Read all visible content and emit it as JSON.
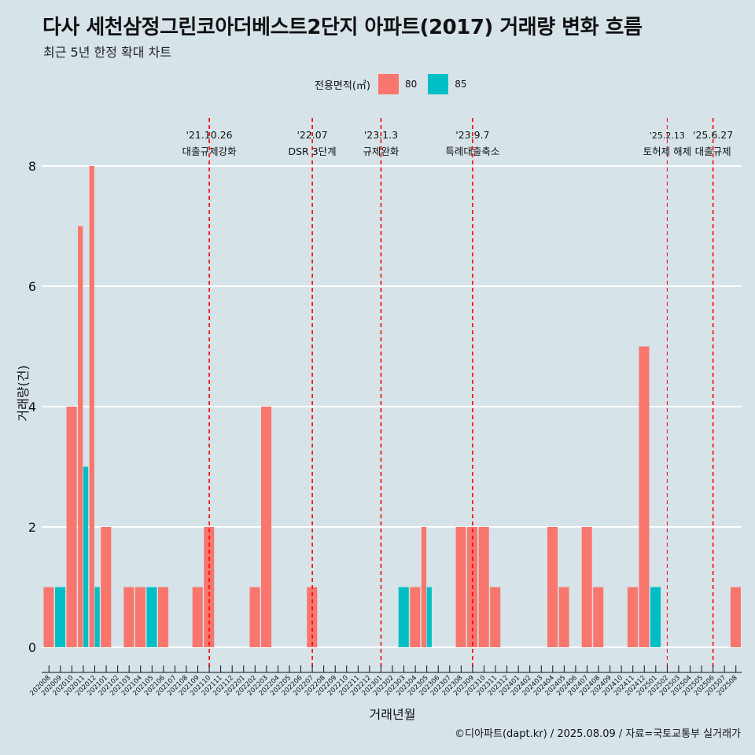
{
  "title": "다사 세천삼정그린코아더베스트2단지 아파트(2017) 거래량 변화 흐름",
  "subtitle": "최근 5년 한정 확대 차트",
  "caption": "©디아파트(dapt.kr) / 2025.08.09 / 자료=국토교통부 실거래가",
  "legend": {
    "title": "전용면적(㎡)",
    "items": [
      {
        "label": "80",
        "color": "#f8766d"
      },
      {
        "label": "85",
        "color": "#00bfc4"
      }
    ]
  },
  "chart_data": {
    "type": "bar",
    "xlabel": "거래년월",
    "ylabel": "거래량(건)",
    "ylim": [
      0,
      8
    ],
    "yticks": [
      0,
      2,
      4,
      6,
      8
    ],
    "grid": true,
    "legend_position": "top",
    "categories": [
      "202008",
      "202009",
      "202010",
      "202011",
      "202012",
      "202101",
      "202102",
      "202103",
      "202104",
      "202105",
      "202106",
      "202107",
      "202108",
      "202109",
      "202110",
      "202111",
      "202112",
      "202201",
      "202202",
      "202203",
      "202204",
      "202205",
      "202206",
      "202207",
      "202208",
      "202209",
      "202210",
      "202211",
      "202212",
      "202301",
      "202302",
      "202303",
      "202304",
      "202305",
      "202306",
      "202307",
      "202308",
      "202309",
      "202310",
      "202311",
      "202312",
      "202401",
      "202402",
      "202403",
      "202404",
      "202405",
      "202406",
      "202407",
      "202408",
      "202409",
      "202410",
      "202411",
      "202412",
      "202501",
      "202502",
      "202503",
      "202504",
      "202505",
      "202506",
      "202507",
      "202508"
    ],
    "series": [
      {
        "name": "80",
        "color": "#f8766d",
        "values": [
          1,
          0,
          4,
          7,
          8,
          2,
          0,
          1,
          1,
          0,
          1,
          0,
          0,
          1,
          2,
          0,
          0,
          0,
          1,
          4,
          0,
          0,
          0,
          1,
          0,
          0,
          0,
          0,
          0,
          0,
          0,
          0,
          1,
          2,
          0,
          0,
          2,
          2,
          2,
          1,
          0,
          0,
          0,
          0,
          2,
          1,
          0,
          2,
          1,
          0,
          0,
          1,
          5,
          0,
          0,
          0,
          0,
          0,
          0,
          0,
          1
        ]
      },
      {
        "name": "85",
        "color": "#00bfc4",
        "values": [
          0,
          1,
          0,
          3,
          1,
          0,
          0,
          0,
          0,
          1,
          0,
          0,
          0,
          0,
          0,
          0,
          0,
          0,
          0,
          0,
          0,
          0,
          0,
          0,
          0,
          0,
          0,
          0,
          0,
          0,
          0,
          1,
          0,
          1,
          0,
          0,
          0,
          0,
          0,
          0,
          0,
          0,
          0,
          0,
          0,
          0,
          0,
          0,
          0,
          0,
          0,
          0,
          0,
          1,
          0,
          0,
          0,
          0,
          0,
          0,
          0
        ]
      }
    ],
    "annotations": [
      {
        "date": "'21.10.26",
        "text": "대출규제강화",
        "x": "202110"
      },
      {
        "date": "'22.07",
        "text": "DSR 3단계",
        "x": "202207"
      },
      {
        "date": "'23.1.3",
        "text": "규제완화",
        "x": "202301"
      },
      {
        "date": "'23.9.7",
        "text": "특례대출축소",
        "x": "202309"
      },
      {
        "date": "'25.2.13",
        "text": "토허제 해제",
        "x": "202502"
      },
      {
        "date": "'25.6.27",
        "text": "대출규제",
        "x": "202506"
      }
    ]
  }
}
